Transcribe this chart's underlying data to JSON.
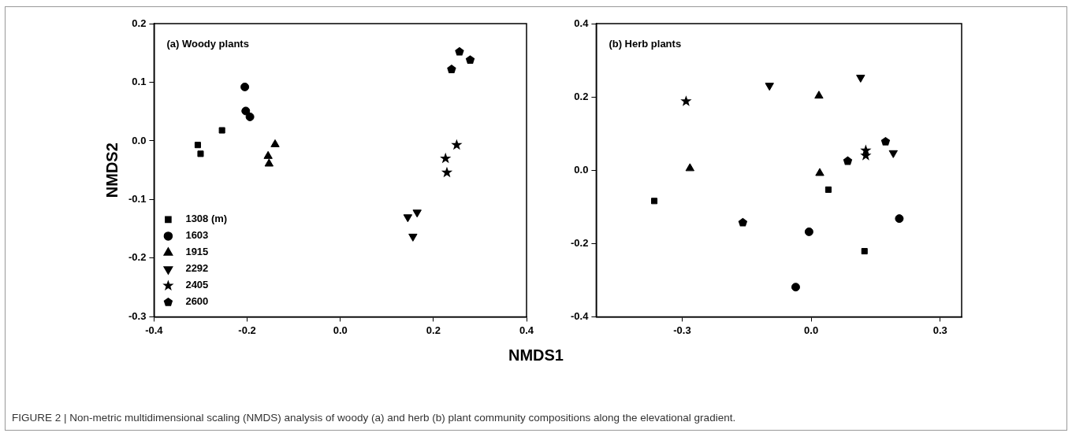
{
  "chart_data": [
    {
      "type": "scatter",
      "title": "(a) Woody plants",
      "xlabel": "NMDS1",
      "ylabel": "NMDS2",
      "xlim": [
        -0.4,
        0.4
      ],
      "ylim": [
        -0.3,
        0.2
      ],
      "xticks": [
        -0.4,
        -0.2,
        {
          "value": 0,
          "label": "0.0"
        },
        0.2,
        0.4
      ],
      "yticks": [
        -0.3,
        -0.2,
        -0.1,
        {
          "value": 0,
          "label": "0.0"
        },
        0.1,
        0.2
      ],
      "grid": false,
      "legend": "bottom left",
      "annotations": [
        "FIGURE 2 | Non-metric multidimensional scaling (NMDS) analysis of woody (a) and herb (b) plant community compositions along the elevational gradient."
      ],
      "series": [
        {
          "name": "1308 (m)",
          "color": "#000000",
          "marker": "square",
          "x": [
            -0.306,
            -0.3,
            -0.254
          ],
          "values": [
            -0.007,
            -0.022,
            0.018
          ]
        },
        {
          "name": "1603",
          "color": "#000000",
          "marker": "circle",
          "x": [
            -0.205,
            -0.203,
            -0.194
          ],
          "values": [
            0.092,
            0.051,
            0.041
          ]
        },
        {
          "name": "1915",
          "color": "#000000",
          "marker": "triangle",
          "x": [
            -0.155,
            -0.14,
            -0.153
          ],
          "values": [
            -0.026,
            -0.006,
            -0.039
          ]
        },
        {
          "name": "2292",
          "color": "#000000",
          "marker": "triangle-down",
          "x": [
            0.165,
            0.145,
            0.156
          ],
          "values": [
            -0.122,
            -0.13,
            -0.163
          ]
        },
        {
          "name": "2405",
          "color": "#000000",
          "marker": "star",
          "x": [
            0.25,
            0.226,
            0.229
          ],
          "values": [
            -0.007,
            -0.03,
            -0.054
          ]
        },
        {
          "name": "2600",
          "color": "#000000",
          "x": [
            0.256,
            0.279,
            0.239
          ],
          "values": [
            0.152,
            0.138,
            0.122
          ]
        }
      ]
    },
    {
      "type": "scatter",
      "title": "(b) Herb plants",
      "xlim": [
        -0.5,
        0.35
      ],
      "ylim": [
        -0.4,
        0.4
      ],
      "xticks": [
        -0.3,
        {
          "value": 0,
          "label": "0.0"
        },
        0.3
      ],
      "yticks": [
        -0.4,
        -0.2,
        {
          "value": 0,
          "label": "0.0"
        },
        0.2,
        0.4
      ],
      "grid": false,
      "series": [
        {
          "color": "#000000",
          "marker": "square",
          "x": [
            -0.365,
            0.04,
            0.124
          ],
          "values": [
            -0.084,
            -0.053,
            -0.221
          ]
        },
        {
          "color": "#000000",
          "marker": "circle",
          "x": [
            0.205,
            -0.005,
            -0.036
          ],
          "values": [
            -0.132,
            -0.168,
            -0.319
          ]
        },
        {
          "color": "#000000",
          "marker": "triangle",
          "x": [
            -0.282,
            0.018,
            0.02
          ],
          "values": [
            0.005,
            0.203,
            -0.008
          ]
        },
        {
          "color": "#000000",
          "marker": "triangle-down",
          "x": [
            -0.097,
            0.115,
            0.191
          ],
          "values": [
            0.231,
            0.253,
            0.047
          ]
        },
        {
          "color": "#000000",
          "marker": "star",
          "x": [
            -0.291,
            0.127,
            0.127
          ],
          "values": [
            0.188,
            0.054,
            0.04
          ]
        },
        {
          "color": "#000000",
          "x": [
            -0.159,
            0.173,
            0.085
          ],
          "values": [
            -0.143,
            0.078,
            0.025
          ]
        }
      ]
    }
  ]
}
